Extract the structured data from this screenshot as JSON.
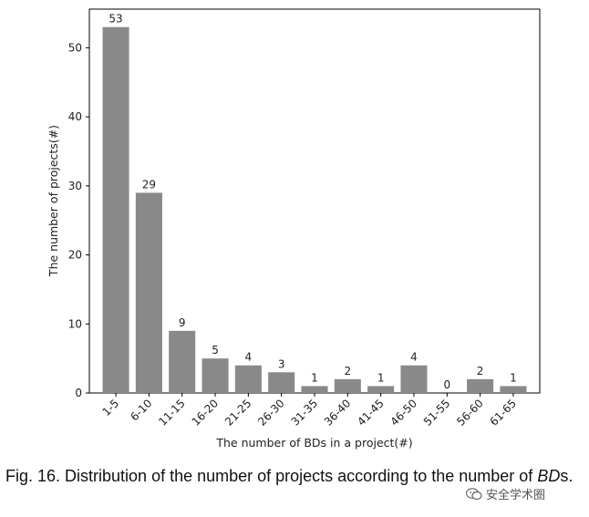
{
  "chart_data": {
    "type": "bar",
    "categories": [
      "1-5",
      "6-10",
      "11-15",
      "16-20",
      "21-25",
      "26-30",
      "31-35",
      "36-40",
      "41-45",
      "46-50",
      "51-55",
      "56-60",
      "61-65"
    ],
    "values": [
      53,
      29,
      9,
      5,
      4,
      3,
      1,
      2,
      1,
      4,
      0,
      2,
      1
    ],
    "xlabel": "The number of BDs in a project(#)",
    "ylabel": "The number of projects(#)",
    "ylim": [
      0,
      55.6
    ],
    "yticks": [
      0,
      10,
      20,
      30,
      40,
      50
    ],
    "bar_color": "#898989",
    "grid": false
  },
  "caption": {
    "prefix": "Fig. 16. Distribution of the number of projects according to the number of ",
    "emphasis": "BD",
    "suffix": "s."
  },
  "watermark": {
    "text": "安全学术圈",
    "icon": "wechat-icon"
  }
}
